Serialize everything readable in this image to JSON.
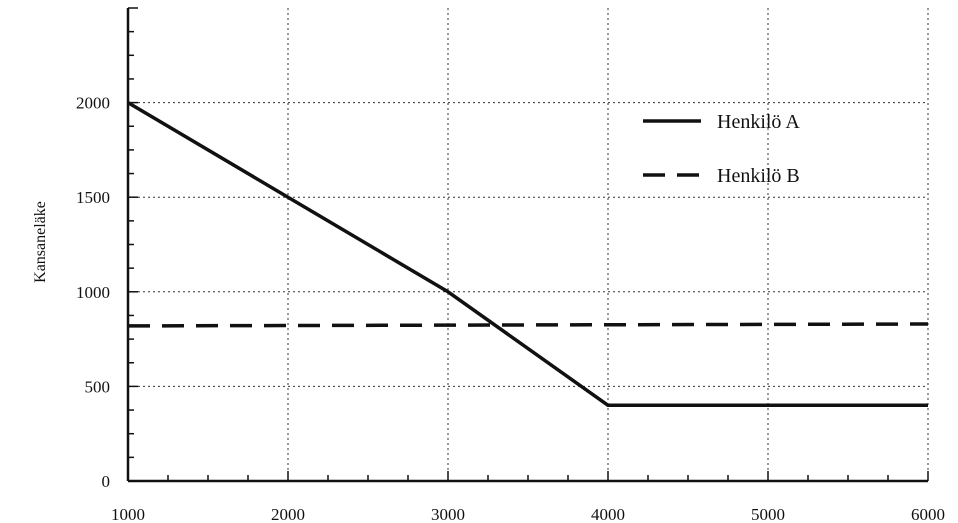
{
  "chart_data": {
    "type": "line",
    "title": "",
    "xlabel": "",
    "ylabel": "Kansaneläke",
    "xlim": [
      1000,
      6000
    ],
    "ylim": [
      0,
      2500
    ],
    "x_ticks": [
      1000,
      2000,
      3000,
      4000,
      5000,
      6000
    ],
    "x_tick_labels": [
      "1000",
      "2000",
      "3000",
      "4000",
      "5000",
      "6000"
    ],
    "y_ticks": [
      0,
      500,
      1000,
      1500,
      2000
    ],
    "y_tick_labels": [
      "0",
      "500",
      "1000",
      "1500",
      "2000"
    ],
    "grid": true,
    "legend_position": "top-right",
    "series": [
      {
        "name": "Henkilö A",
        "line_style": "solid",
        "color": "#111111",
        "points": [
          [
            1000,
            2000
          ],
          [
            2000,
            1500
          ],
          [
            3000,
            1000
          ],
          [
            4000,
            400
          ],
          [
            6000,
            400
          ]
        ]
      },
      {
        "name": "Henkilö B",
        "line_style": "dashed",
        "color": "#111111",
        "points": [
          [
            1000,
            820
          ],
          [
            6000,
            830
          ]
        ]
      }
    ]
  }
}
